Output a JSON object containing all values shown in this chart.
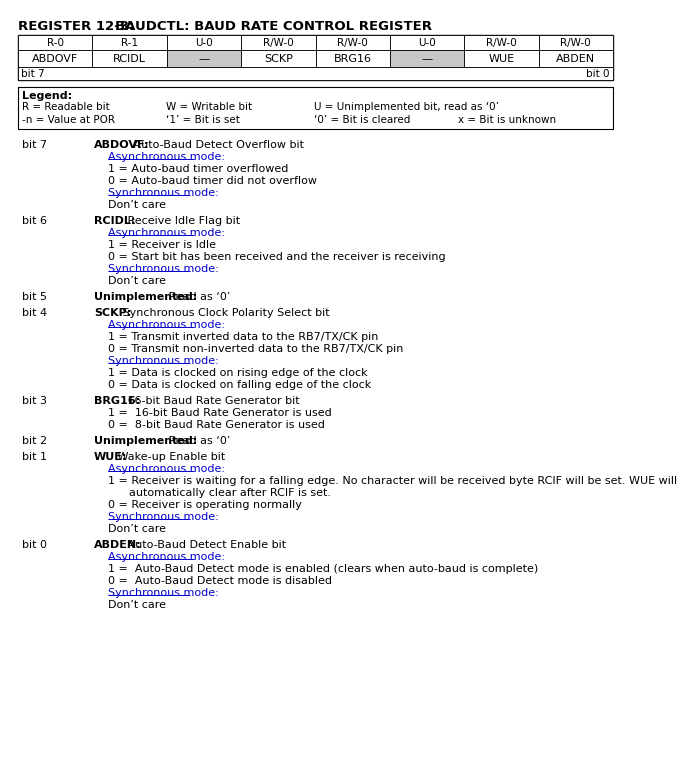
{
  "title_prefix": "REGISTER 12-3:",
  "title_suffix": "BAUDCTL: BAUD RATE CONTROL REGISTER",
  "reg_types": [
    "R-0",
    "R-1",
    "U-0",
    "R/W-0",
    "R/W-0",
    "U-0",
    "R/W-0",
    "R/W-0"
  ],
  "reg_names": [
    "ABDOVF",
    "RCIDL",
    "—",
    "SCKP",
    "BRG16",
    "—",
    "WUE",
    "ABDEN"
  ],
  "reg_shaded": [
    false,
    false,
    true,
    false,
    false,
    true,
    false,
    false
  ],
  "bit_high": "bit 7",
  "bit_low": "bit 0",
  "legend_title": "Legend:",
  "legend_row1": [
    "R = Readable bit",
    "W = Writable bit",
    "U = Unimplemented bit, read as ‘0’"
  ],
  "legend_row2": [
    "-n = Value at POR",
    "‘1’ = Bit is set",
    "‘0’ = Bit is cleared",
    "x = Bit is unknown"
  ],
  "bg_color": "#ffffff",
  "shaded_cell_bg": "#c8c8c8",
  "link_color": "#0000cc",
  "text_color": "#000000",
  "bit_descriptions": [
    {
      "bit": "bit 7",
      "name": "ABDOVF",
      "colon": ":",
      "desc": " Auto-Baud Detect Overflow bit",
      "sections": [
        {
          "label": "Asynchronous mode:",
          "lines": [
            "1 = Auto-baud timer overflowed",
            "0 = Auto-baud timer did not overflow"
          ]
        },
        {
          "label": "Synchronous mode:",
          "lines": [
            "Don’t care"
          ]
        }
      ]
    },
    {
      "bit": "bit 6",
      "name": "RCIDL",
      "colon": ":",
      "desc": " Receive Idle Flag bit",
      "sections": [
        {
          "label": "Asynchronous mode:",
          "lines": [
            "1 = Receiver is Idle",
            "0 = Start bit has been received and the receiver is receiving"
          ]
        },
        {
          "label": "Synchronous mode:",
          "lines": [
            "Don’t care"
          ]
        }
      ]
    },
    {
      "bit": "bit 5",
      "name": "Unimplemented",
      "colon": ":",
      "desc": " Read as ‘0’",
      "sections": []
    },
    {
      "bit": "bit 4",
      "name": "SCKP",
      "colon": ":",
      "desc": " Synchronous Clock Polarity Select bit",
      "sections": [
        {
          "label": "Asynchronous mode:",
          "lines": [
            "1 = Transmit inverted data to the RB7/TX/CK pin",
            "0 = Transmit non-inverted data to the RB7/TX/CK pin"
          ]
        },
        {
          "label": "Synchronous mode:",
          "lines": [
            "1 = Data is clocked on rising edge of the clock",
            "0 = Data is clocked on falling edge of the clock"
          ]
        }
      ]
    },
    {
      "bit": "bit 3",
      "name": "BRG16",
      "colon": ":",
      "desc": " 16-bit Baud Rate Generator bit",
      "sections": [
        {
          "label": null,
          "lines": [
            "1 =  16-bit Baud Rate Generator is used",
            "0 =  8-bit Baud Rate Generator is used"
          ]
        }
      ]
    },
    {
      "bit": "bit 2",
      "name": "Unimplemented",
      "colon": ":",
      "desc": " Read as ‘0’",
      "sections": []
    },
    {
      "bit": "bit 1",
      "name": "WUE",
      "colon": ":",
      "desc": " Wake-up Enable bit",
      "sections": [
        {
          "label": "Asynchronous mode:",
          "lines": [
            "1 = Receiver is waiting for a falling edge. No character will be received byte RCIF will be set. WUE will",
            "      automatically clear after RCIF is set.",
            "0 = Receiver is operating normally"
          ]
        },
        {
          "label": "Synchronous mode:",
          "lines": [
            "Don’t care"
          ]
        }
      ]
    },
    {
      "bit": "bit 0",
      "name": "ABDEN",
      "colon": ":",
      "desc": " Auto-Baud Detect Enable bit",
      "sections": [
        {
          "label": "Asynchronous mode:",
          "lines": [
            "1 =  Auto-Baud Detect mode is enabled (clears when auto-baud is complete)",
            "0 =  Auto-Baud Detect mode is disabled"
          ]
        },
        {
          "label": "Synchronous mode:",
          "lines": [
            "Don’t care"
          ]
        }
      ]
    }
  ]
}
